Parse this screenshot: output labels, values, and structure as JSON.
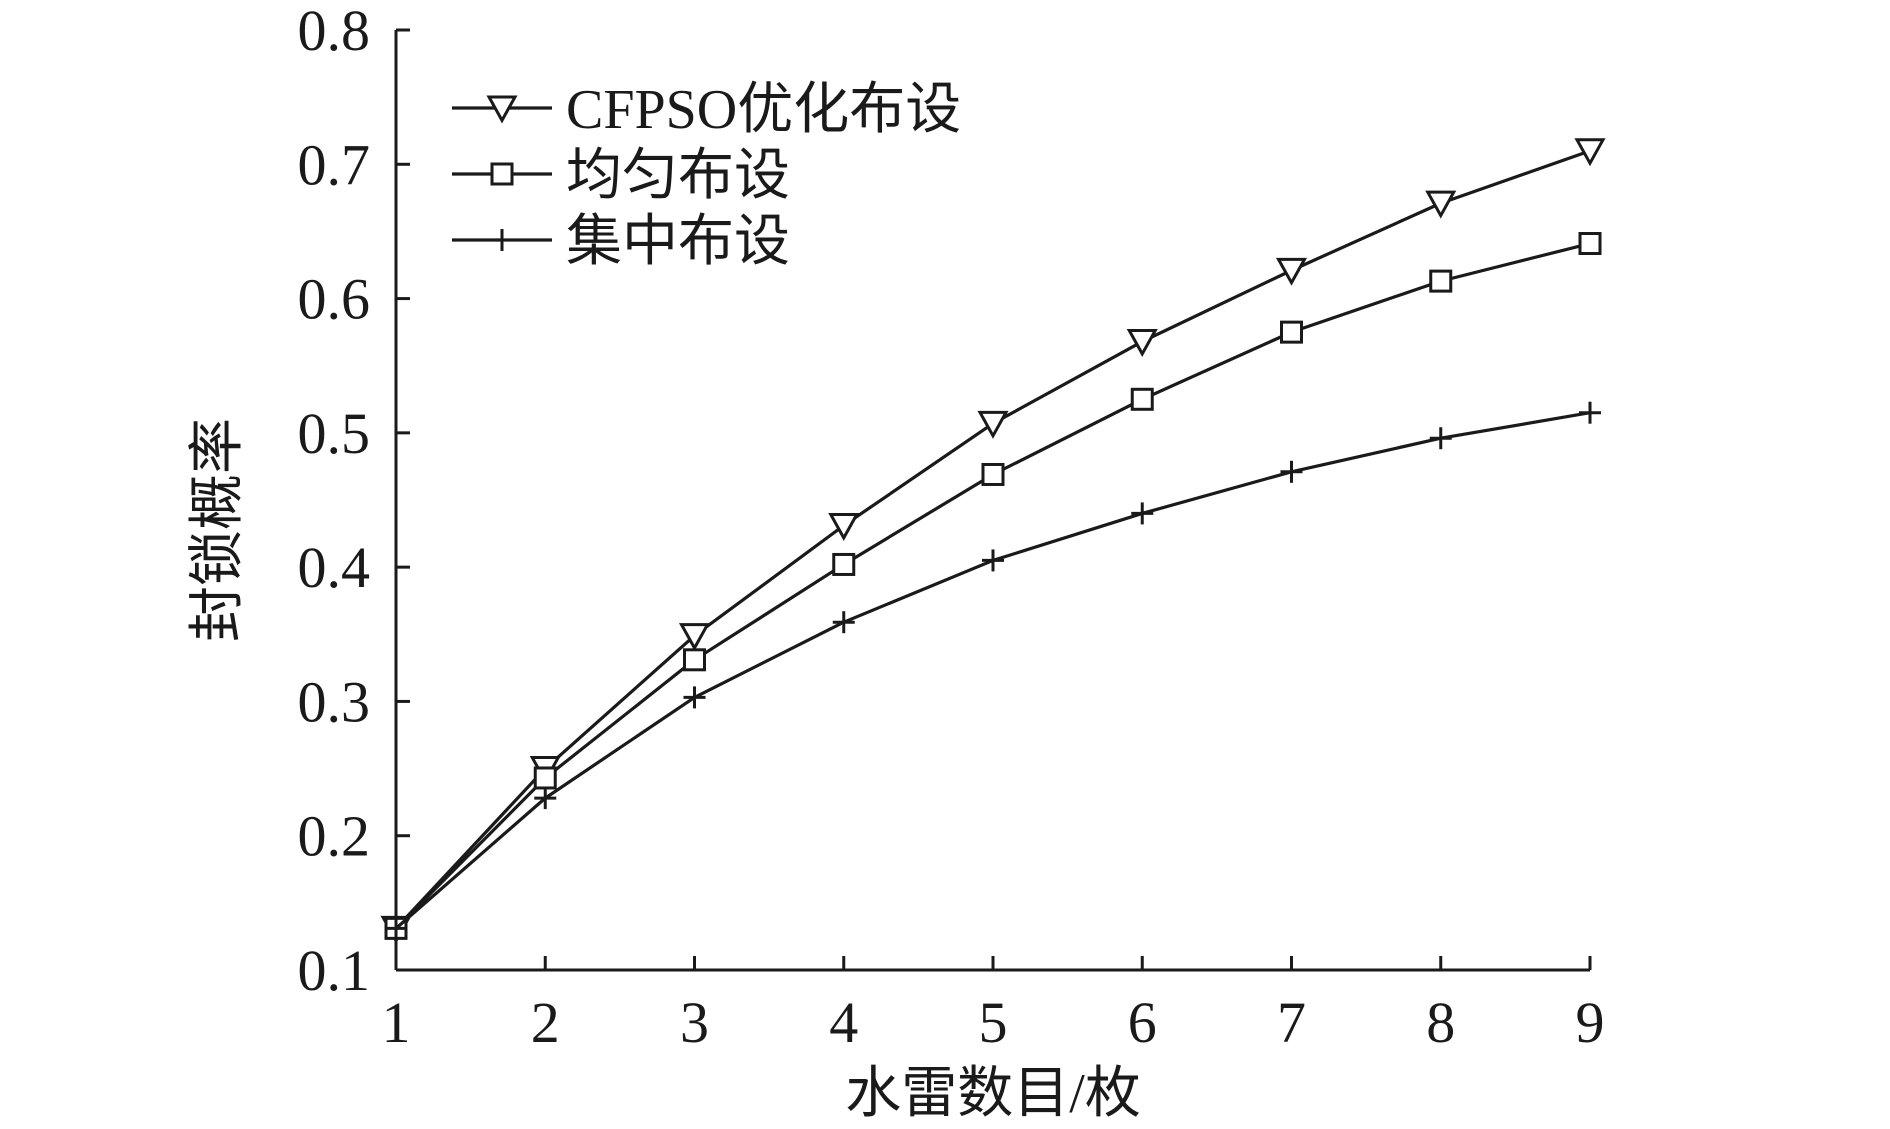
{
  "chart_data": {
    "type": "line",
    "title": "",
    "xlabel": "水雷数目/枚",
    "ylabel": "封锁概率",
    "xlim": [
      1,
      9
    ],
    "ylim": [
      0.1,
      0.8
    ],
    "grid": false,
    "legend_position": "top-left",
    "x": [
      1,
      2,
      3,
      4,
      5,
      6,
      7,
      8,
      9
    ],
    "x_tick_labels": [
      "1",
      "2",
      "3",
      "4",
      "5",
      "6",
      "7",
      "8",
      "9"
    ],
    "y_ticks": [
      0.1,
      0.2,
      0.3,
      0.4,
      0.5,
      0.6,
      0.7,
      0.8
    ],
    "y_tick_labels": [
      "0.1",
      "0.2",
      "0.3",
      "0.4",
      "0.5",
      "0.6",
      "0.7",
      "0.8"
    ],
    "series": [
      {
        "name": "CFPSO优化布设",
        "marker": "triangle-down",
        "color": "#1a1a1a",
        "values": [
          0.131,
          0.25,
          0.349,
          0.431,
          0.507,
          0.568,
          0.621,
          0.671,
          0.71
        ]
      },
      {
        "name": "均匀布设",
        "marker": "square",
        "color": "#1a1a1a",
        "values": [
          0.131,
          0.243,
          0.331,
          0.402,
          0.469,
          0.525,
          0.575,
          0.613,
          0.641
        ]
      },
      {
        "name": "集中布设",
        "marker": "plus",
        "color": "#1a1a1a",
        "values": [
          0.131,
          0.228,
          0.303,
          0.359,
          0.405,
          0.44,
          0.471,
          0.496,
          0.515
        ]
      }
    ]
  }
}
